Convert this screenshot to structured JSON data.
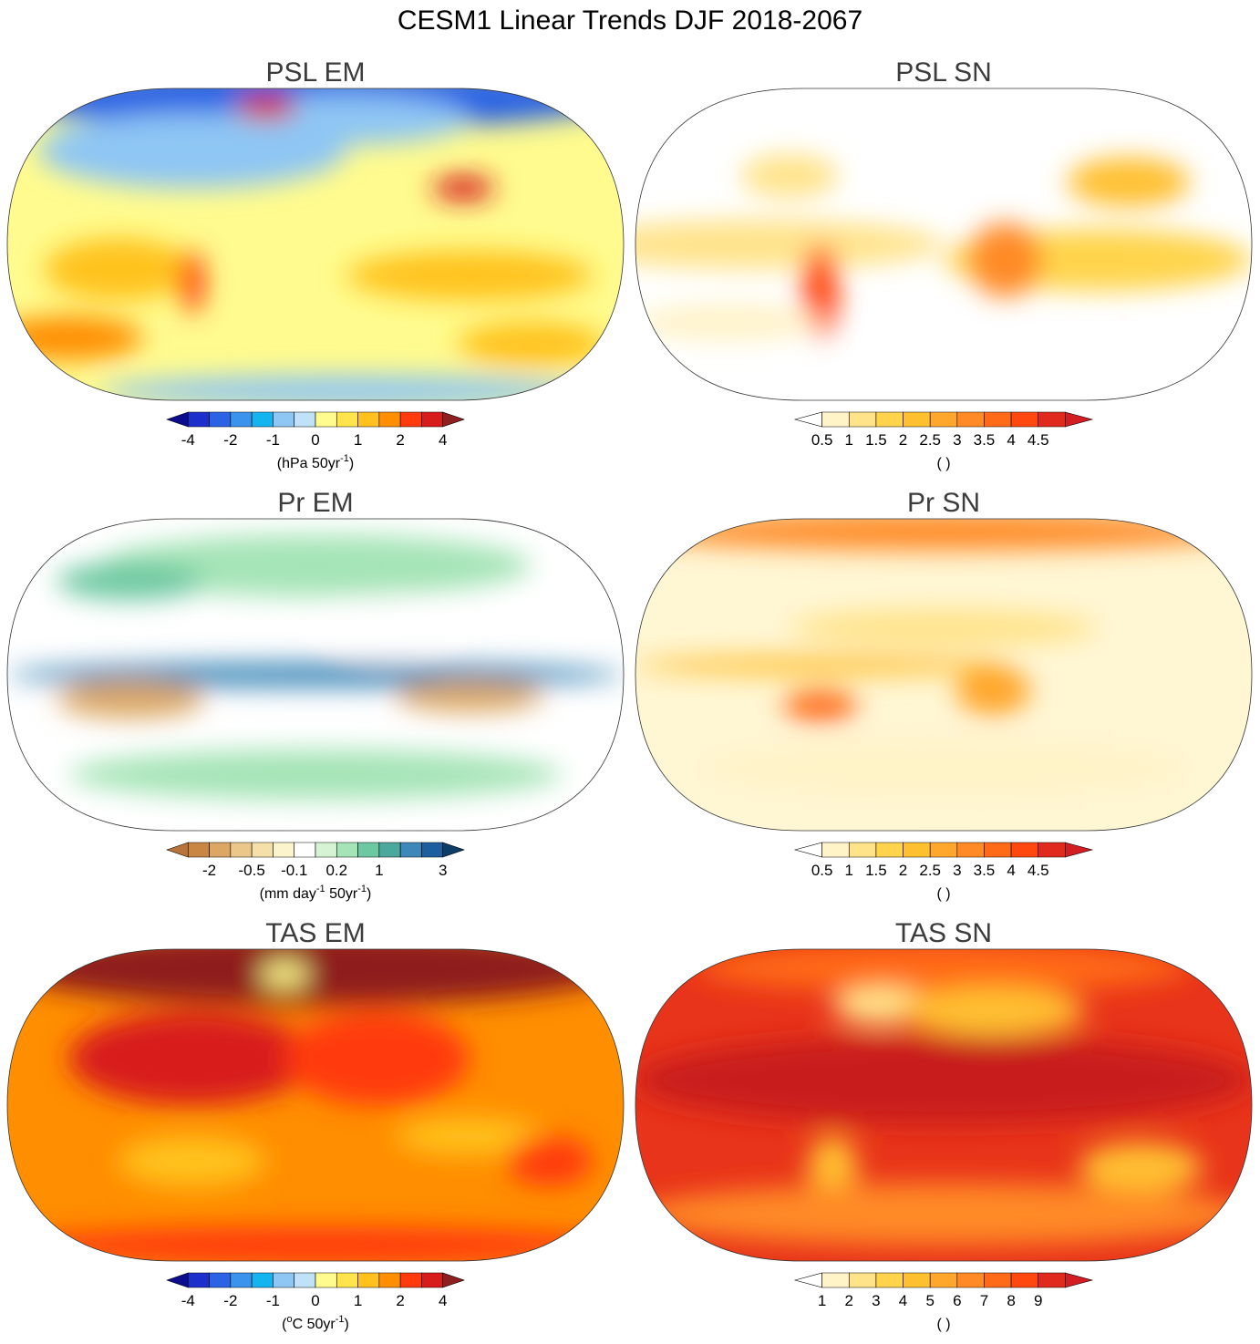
{
  "title": "CESM1 Linear Trends DJF 2018-2067",
  "panels": [
    {
      "title": "PSL EM",
      "colors": [
        "#0c0c8c",
        "#1c2fcc",
        "#2b63e4",
        "#3b93ee",
        "#14b4ee",
        "#8ec6f4",
        "#c0e2f8",
        "#fffb8e",
        "#ffe44c",
        "#ffc21c",
        "#ff8e00",
        "#ff3a0c",
        "#d81c1c",
        "#8e1f1f"
      ],
      "ticks": [
        -4,
        -2,
        -1,
        0,
        1,
        2,
        4
      ],
      "units": [
        {
          "text": "(hPa 50yr"
        },
        {
          "text": "-1",
          "sup": true
        },
        {
          "text": ")"
        }
      ]
    },
    {
      "title": "PSL SN",
      "colors": [
        "#ffffff",
        "#fff3c8",
        "#ffe38a",
        "#ffd44c",
        "#ffc030",
        "#ffa62c",
        "#ff8a26",
        "#ff6a18",
        "#ff4810",
        "#e02a1e",
        "#d21e22"
      ],
      "ticks": [
        0.5,
        1,
        1.5,
        2,
        2.5,
        3,
        3.5,
        4,
        4.5
      ],
      "units": [
        {
          "text": "( )"
        }
      ]
    },
    {
      "title": "Pr EM",
      "colors": [
        "#b8743a",
        "#c98642",
        "#dca764",
        "#ebc78a",
        "#f4e0a8",
        "#fcf4cc",
        "#ffffff",
        "#d6f4d4",
        "#a4e4b6",
        "#6cc8a0",
        "#4aa89c",
        "#3c88b8",
        "#1c5e9e",
        "#0c3c68"
      ],
      "ticks": [
        -2,
        -0.5,
        -0.1,
        0.2,
        1,
        3
      ],
      "units": [
        {
          "text": "(mm day"
        },
        {
          "text": "-1",
          "sup": true
        },
        {
          "text": " 50yr"
        },
        {
          "text": "-1",
          "sup": true
        },
        {
          "text": ")"
        }
      ]
    },
    {
      "title": "Pr SN",
      "colors": [
        "#ffffff",
        "#fff3c8",
        "#ffe38a",
        "#ffd44c",
        "#ffc030",
        "#ffa62c",
        "#ff8a26",
        "#ff6a18",
        "#ff4810",
        "#e02a1e",
        "#d21e22"
      ],
      "ticks": [
        0.5,
        1,
        1.5,
        2,
        2.5,
        3,
        3.5,
        4,
        4.5
      ],
      "units": [
        {
          "text": "( )"
        }
      ]
    },
    {
      "title": "TAS EM",
      "colors": [
        "#0c0c8c",
        "#1c2fcc",
        "#2b63e4",
        "#3b93ee",
        "#14b4ee",
        "#8ec6f4",
        "#c0e2f8",
        "#fffb8e",
        "#ffe44c",
        "#ffc21c",
        "#ff8e00",
        "#ff3a0c",
        "#d81c1c",
        "#8e1f1f"
      ],
      "ticks": [
        -4,
        -2,
        -1,
        0,
        1,
        2,
        4
      ],
      "units": [
        {
          "text": "("
        },
        {
          "text": "o",
          "sup": true
        },
        {
          "text": "C 50yr"
        },
        {
          "text": "-1",
          "sup": true
        },
        {
          "text": ")"
        }
      ]
    },
    {
      "title": "TAS SN",
      "colors": [
        "#ffffff",
        "#fff3c8",
        "#ffe38a",
        "#ffd44c",
        "#ffc030",
        "#ffa62c",
        "#ff8a26",
        "#ff6a18",
        "#ff4810",
        "#e02a1e",
        "#d21e22"
      ],
      "ticks": [
        1,
        2,
        3,
        4,
        5,
        6,
        7,
        8,
        9
      ],
      "units": [
        {
          "text": "( )"
        }
      ]
    }
  ]
}
